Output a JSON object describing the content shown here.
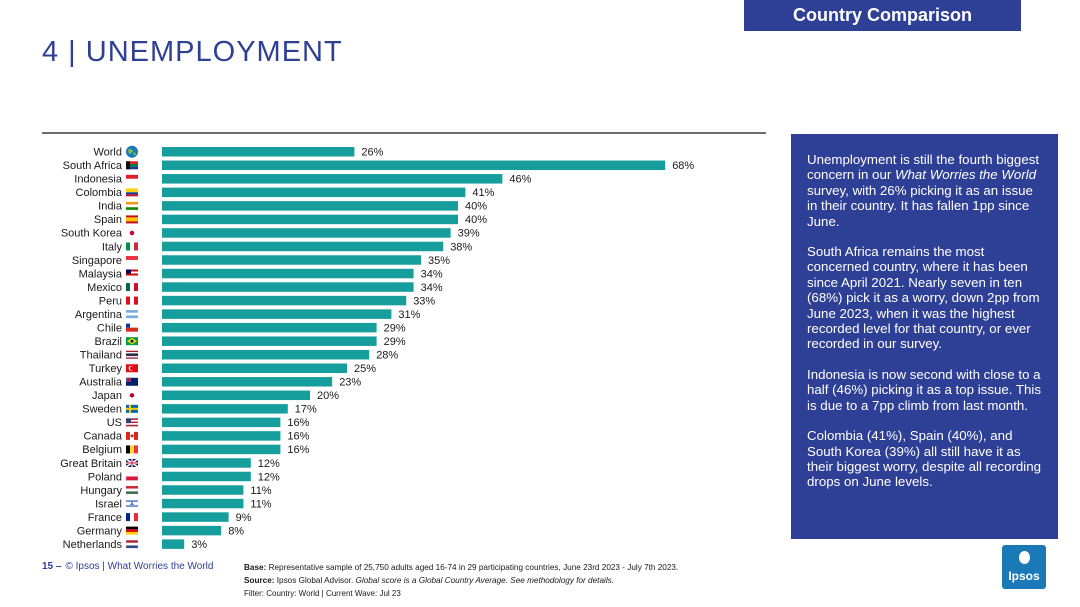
{
  "header": {
    "tag": "Country Comparison",
    "title": "4 | UNEMPLOYMENT"
  },
  "chart_data": {
    "type": "bar",
    "orientation": "horizontal",
    "bar_color": "#169e9c",
    "categories": [
      "World",
      "South Africa",
      "Indonesia",
      "Colombia",
      "India",
      "Spain",
      "South Korea",
      "Italy",
      "Singapore",
      "Malaysia",
      "Mexico",
      "Peru",
      "Argentina",
      "Chile",
      "Brazil",
      "Thailand",
      "Turkey",
      "Australia",
      "Japan",
      "Sweden",
      "US",
      "Canada",
      "Belgium",
      "Great Britain",
      "Poland",
      "Hungary",
      "Israel",
      "France",
      "Germany",
      "Netherlands"
    ],
    "values": [
      26,
      68,
      46,
      41,
      40,
      40,
      39,
      38,
      35,
      34,
      34,
      33,
      31,
      29,
      29,
      28,
      25,
      23,
      20,
      17,
      16,
      16,
      16,
      12,
      12,
      11,
      11,
      9,
      8,
      3
    ],
    "labels": [
      "26%",
      "68%",
      "46%",
      "41%",
      "40%",
      "40%",
      "39%",
      "38%",
      "35%",
      "34%",
      "34%",
      "33%",
      "31%",
      "29%",
      "29%",
      "28%",
      "25%",
      "23%",
      "20%",
      "17%",
      "16%",
      "16%",
      "16%",
      "12%",
      "12%",
      "11%",
      "11%",
      "9%",
      "8%",
      "3%"
    ],
    "flags": [
      "globe",
      "za",
      "id",
      "co",
      "in",
      "es",
      "kr",
      "it",
      "sg",
      "my",
      "mx",
      "pe",
      "ar",
      "cl",
      "br",
      "th",
      "tr",
      "au",
      "jp",
      "se",
      "us",
      "ca",
      "be",
      "gb",
      "pl",
      "hu",
      "il",
      "fr",
      "de",
      "nl"
    ]
  },
  "panel": {
    "bg": "#2e3f96",
    "p1_pre": "Unemployment is still the fourth biggest concern in our ",
    "p1_em": "What Worries the World",
    "p1_post": " survey, with 26% picking it as an issue in their country. It has fallen 1pp since June.",
    "p2": "South Africa remains the most concerned country, where it has been since April 2021. Nearly seven in ten (68%) pick it as a worry, down 2pp from June 2023, when it was the highest recorded level for that country, or ever recorded in our survey.",
    "p3": "Indonesia is now second with close to a half (46%) picking it as a top issue. This is due to a 7pp climb from last month.",
    "p4": "Colombia (41%), Spain (40%), and South Korea (39%) all still have it as their biggest worry, despite all recording drops on June levels."
  },
  "footer": {
    "page": "15 –",
    "source_line": "© Ipsos | What Worries the World",
    "base_label": "Base:",
    "base_text": " Representative sample of 25,750 adults aged 16-74 in 29 participating countries, June 23rd 2023 - July 7th 2023.",
    "source_label": "Source:",
    "source_text": " Ipsos Global Advisor. ",
    "source_em": "Global score is a Global Country Average. See methodology for details.",
    "filter": "Filter: Country: World | Current Wave: Jul 23",
    "logo_text": "Ipsos"
  }
}
